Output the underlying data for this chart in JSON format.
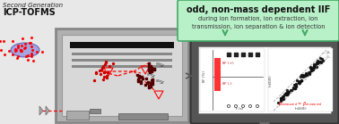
{
  "bg_color": "#e8e8e8",
  "title_italic": "Second Generation",
  "title_bold": "ICP-TOFMS",
  "main_bold_text": "odd, non-mass dependent IIF",
  "sub_text1": "during ion formation, ion extraction, ion",
  "sub_text2": "transmission, ion separation & ion detection",
  "iif_pos_label": "IIF (+)",
  "iif_neg_label": "IIF (-)",
  "left_plot_xlabel": "t (s)",
  "left_plot_ylabel": "IIF (%)",
  "right_plot_xlabel": "ln(E/E)",
  "right_plot_ylabel": "ln(E/E)",
  "green_box_bg": "#b8f0c8",
  "green_box_border": "#44aa66",
  "green_arrow_color": "#44aa66",
  "inst_outer_bg": "#aaaaaa",
  "inst_inner_bg": "#e0e0e0",
  "screen_outer_bg": "#555555",
  "screen_inner_bg": "#ffffff",
  "screen_bezel": "#333333"
}
